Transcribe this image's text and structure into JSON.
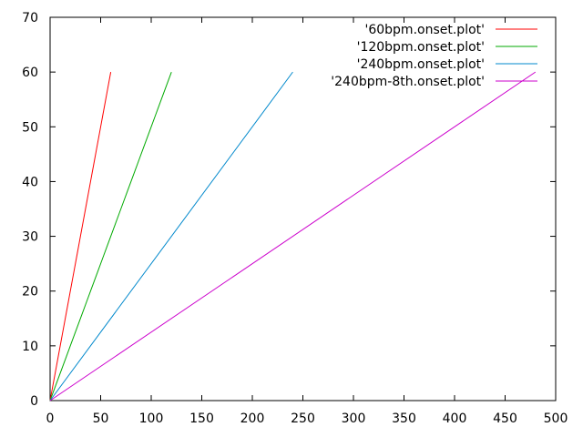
{
  "chart_data": {
    "type": "line",
    "xlim": [
      0,
      500
    ],
    "ylim": [
      0,
      70
    ],
    "x_ticks": [
      0,
      50,
      100,
      150,
      200,
      250,
      300,
      350,
      400,
      450,
      500
    ],
    "y_ticks": [
      0,
      10,
      20,
      30,
      40,
      50,
      60,
      70
    ],
    "grid": false,
    "legend_position": "top-right",
    "series": [
      {
        "name": "'60bpm.onset.plot'",
        "color": "#ff0000",
        "x": [
          0,
          2,
          4,
          6,
          8,
          10,
          12,
          14,
          16,
          18,
          20,
          22,
          24,
          26,
          28,
          30,
          32,
          34,
          36,
          38,
          40,
          42,
          44,
          46,
          48,
          50,
          52,
          54,
          56,
          58,
          60
        ],
        "y": [
          0,
          2,
          4,
          6,
          8,
          10,
          12,
          14,
          16,
          18,
          20,
          22,
          24,
          26,
          28,
          30,
          32,
          34,
          36,
          38,
          40,
          42,
          44,
          46,
          48,
          50,
          52,
          54,
          56,
          58,
          60
        ]
      },
      {
        "name": "'120bpm.onset.plot'",
        "color": "#00aa00",
        "x": [
          0,
          4,
          8,
          12,
          16,
          20,
          24,
          28,
          32,
          36,
          40,
          44,
          48,
          52,
          56,
          60,
          64,
          68,
          72,
          76,
          80,
          84,
          88,
          92,
          96,
          100,
          104,
          108,
          112,
          116,
          120
        ],
        "y": [
          0,
          2,
          4,
          6,
          8,
          10,
          12,
          14,
          16,
          18,
          20,
          22,
          24,
          26,
          28,
          30,
          32,
          34,
          36,
          38,
          40,
          42,
          44,
          46,
          48,
          50,
          52,
          54,
          56,
          58,
          60
        ]
      },
      {
        "name": "'240bpm.onset.plot'",
        "color": "#0088cc",
        "x": [
          0,
          240
        ],
        "y": [
          0,
          60
        ]
      },
      {
        "name": "'240bpm-8th.onset.plot'",
        "color": "#cc00cc",
        "x": [
          0,
          480
        ],
        "y": [
          0,
          60
        ]
      }
    ]
  }
}
